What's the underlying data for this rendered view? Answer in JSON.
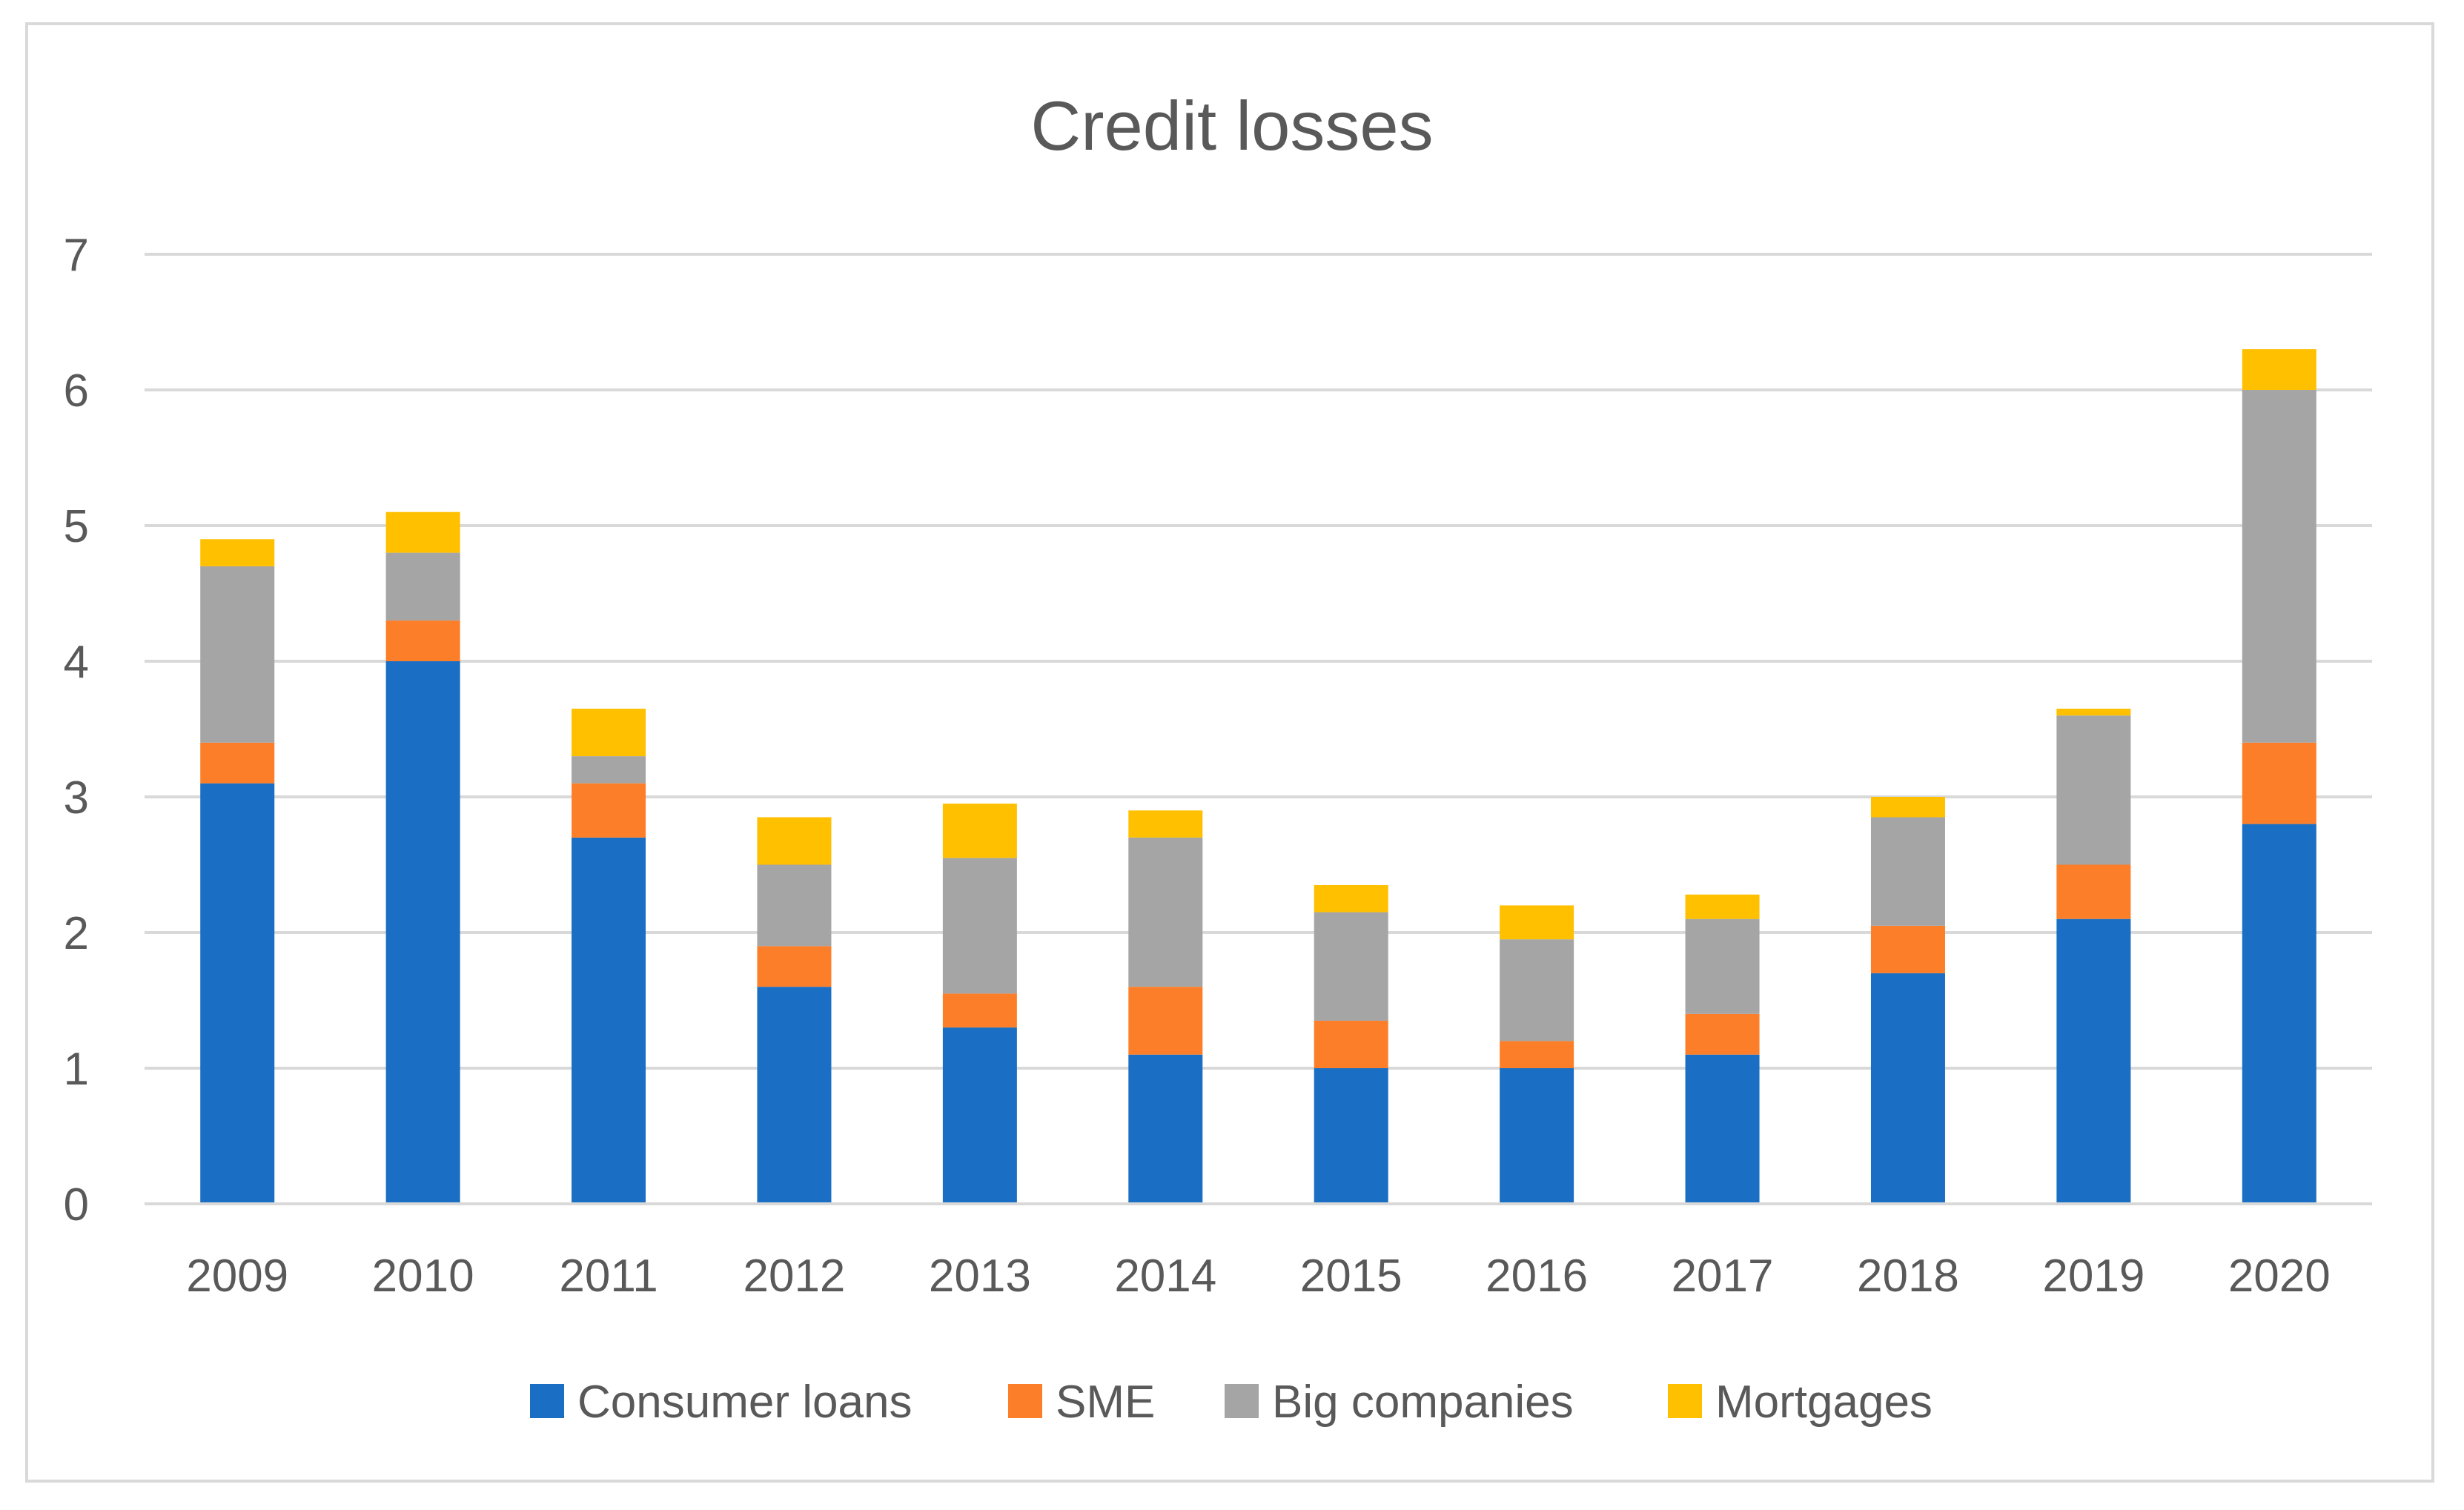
{
  "chart_data": {
    "type": "bar",
    "stacked": true,
    "title": "Credit losses",
    "xlabel": "",
    "ylabel": "",
    "categories": [
      "2009",
      "2010",
      "2011",
      "2012",
      "2013",
      "2014",
      "2015",
      "2016",
      "2017",
      "2018",
      "2019",
      "2020"
    ],
    "series": [
      {
        "name": "Consumer loans",
        "color": "#1a6fc4",
        "values": [
          3.1,
          4.0,
          2.7,
          1.6,
          1.3,
          1.1,
          1.0,
          1.0,
          1.1,
          1.7,
          2.1,
          2.8
        ]
      },
      {
        "name": "SME",
        "color": "#fd7e28",
        "values": [
          0.3,
          0.3,
          0.4,
          0.3,
          0.25,
          0.5,
          0.35,
          0.2,
          0.3,
          0.35,
          0.4,
          0.6
        ]
      },
      {
        "name": "Big companies",
        "color": "#a5a5a5",
        "values": [
          1.3,
          0.5,
          0.2,
          0.6,
          1.0,
          1.1,
          0.8,
          0.75,
          0.7,
          0.8,
          1.1,
          2.6
        ]
      },
      {
        "name": "Mortgages",
        "color": "#ffc000",
        "values": [
          0.2,
          0.3,
          0.35,
          0.35,
          0.4,
          0.2,
          0.2,
          0.25,
          0.18,
          0.15,
          0.05,
          0.3
        ]
      }
    ],
    "ylim": [
      0,
      7
    ],
    "yticks": [
      0,
      1,
      2,
      3,
      4,
      5,
      6,
      7
    ],
    "grid": true,
    "legend": "bottom"
  }
}
